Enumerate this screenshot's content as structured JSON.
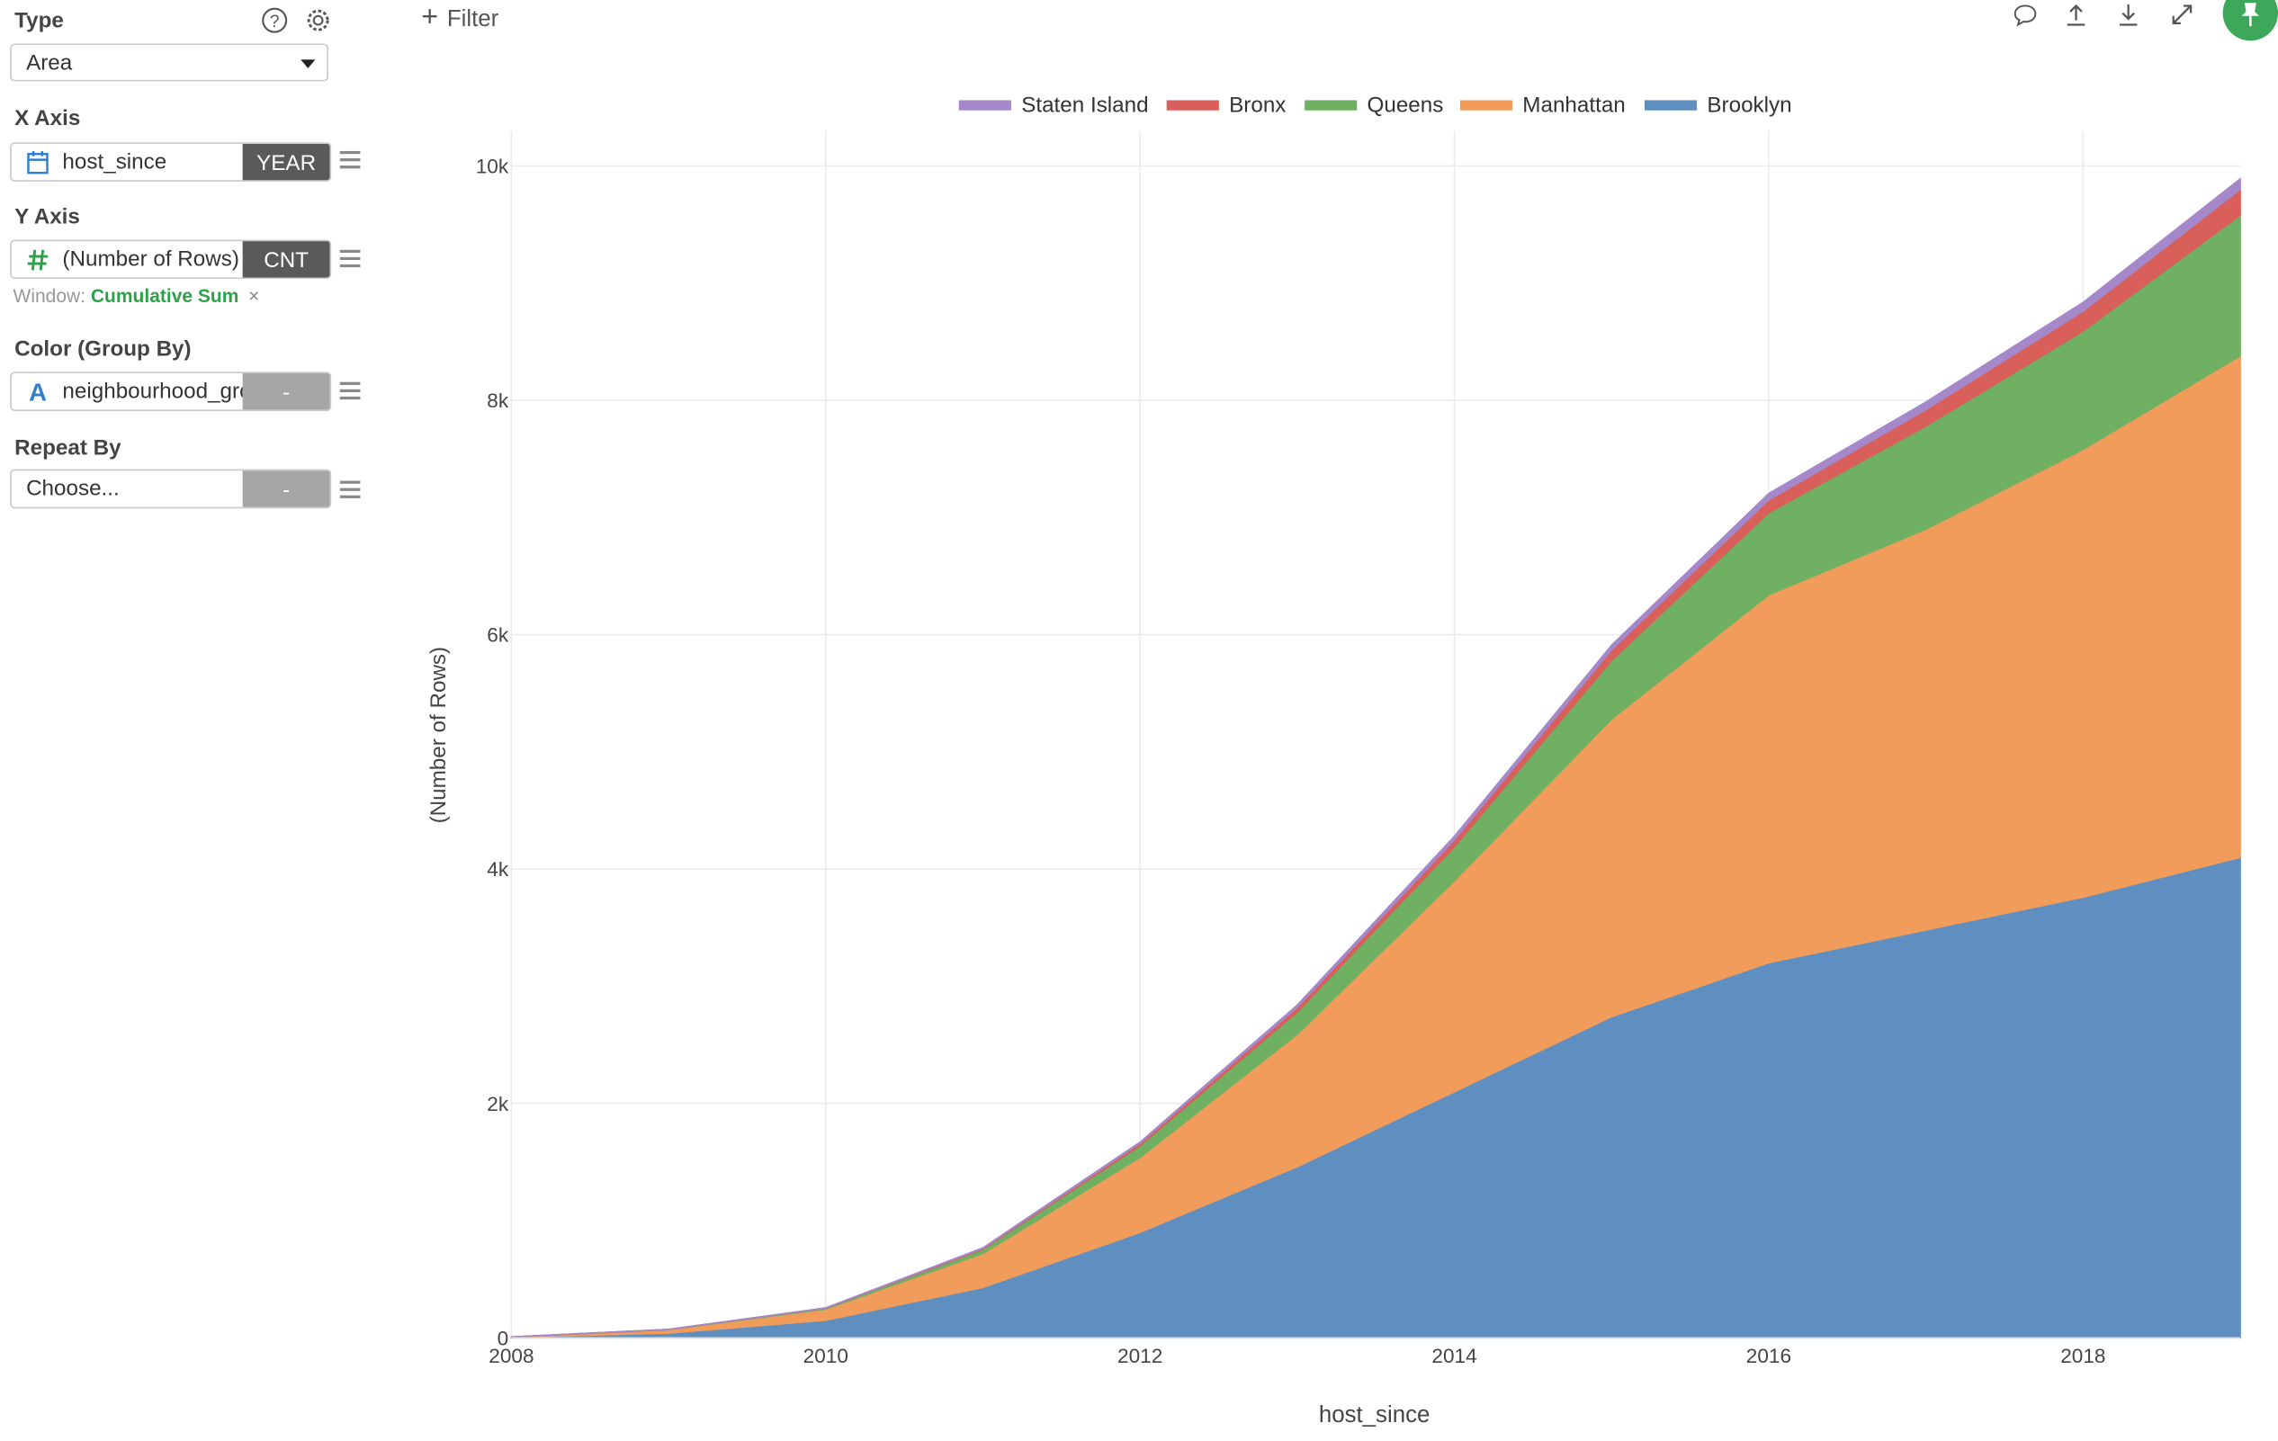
{
  "sidebar": {
    "type": {
      "label": "Type",
      "value": "Area"
    },
    "x_axis": {
      "label": "X Axis",
      "field": "host_since",
      "agg": "YEAR"
    },
    "y_axis": {
      "label": "Y Axis",
      "field": "(Number of Rows)",
      "agg": "CNT",
      "window_label": "Window:",
      "window_value": "Cumulative Sum",
      "window_remove": "×"
    },
    "color": {
      "label": "Color (Group By)",
      "field": "neighbourhood_group",
      "agg": "-"
    },
    "repeat": {
      "label": "Repeat By",
      "placeholder": "Choose...",
      "agg": "-"
    }
  },
  "toolbar": {
    "filter_label": "Filter",
    "icons": [
      "comment-icon",
      "upload-icon",
      "download-icon",
      "expand-icon",
      "pin-icon"
    ]
  },
  "colors": {
    "Brooklyn": "#5f8fc0",
    "Manhattan": "#f19c5a",
    "Queens": "#70b062",
    "Bronx": "#d95f5a",
    "Staten Island": "#a588c9"
  },
  "chart_data": {
    "type": "area",
    "stacked": true,
    "xlabel": "host_since",
    "ylabel": "(Number of Rows)",
    "x": [
      2008,
      2009,
      2010,
      2011,
      2012,
      2013,
      2014,
      2015,
      2016,
      2017,
      2018,
      2019
    ],
    "xticks": [
      2008,
      2010,
      2012,
      2014,
      2016,
      2018
    ],
    "yticks": [
      0,
      2000,
      4000,
      6000,
      8000,
      10000
    ],
    "ytick_labels": [
      "0",
      "2k",
      "4k",
      "6k",
      "8k",
      "10k"
    ],
    "xlim": [
      2008,
      2019
    ],
    "ylim": [
      0,
      10300
    ],
    "grid": true,
    "legend_position": "top",
    "series": [
      {
        "name": "Brooklyn",
        "values": [
          5,
          40,
          150,
          430,
          900,
          1460,
          2100,
          2740,
          3200,
          3480,
          3760,
          4100
        ]
      },
      {
        "name": "Manhattan",
        "values": [
          3,
          30,
          95,
          290,
          640,
          1130,
          1800,
          2540,
          3140,
          3420,
          3820,
          4280
        ]
      },
      {
        "name": "Queens",
        "values": [
          0,
          2,
          8,
          35,
          100,
          190,
          290,
          500,
          700,
          880,
          1010,
          1200
        ]
      },
      {
        "name": "Bronx",
        "values": [
          0,
          0,
          2,
          8,
          20,
          40,
          60,
          90,
          110,
          140,
          170,
          220
        ]
      },
      {
        "name": "Staten Island",
        "values": [
          0,
          0,
          1,
          5,
          10,
          20,
          30,
          40,
          55,
          65,
          75,
          90
        ]
      }
    ],
    "legend_order": [
      "Staten Island",
      "Bronx",
      "Queens",
      "Manhattan",
      "Brooklyn"
    ]
  }
}
